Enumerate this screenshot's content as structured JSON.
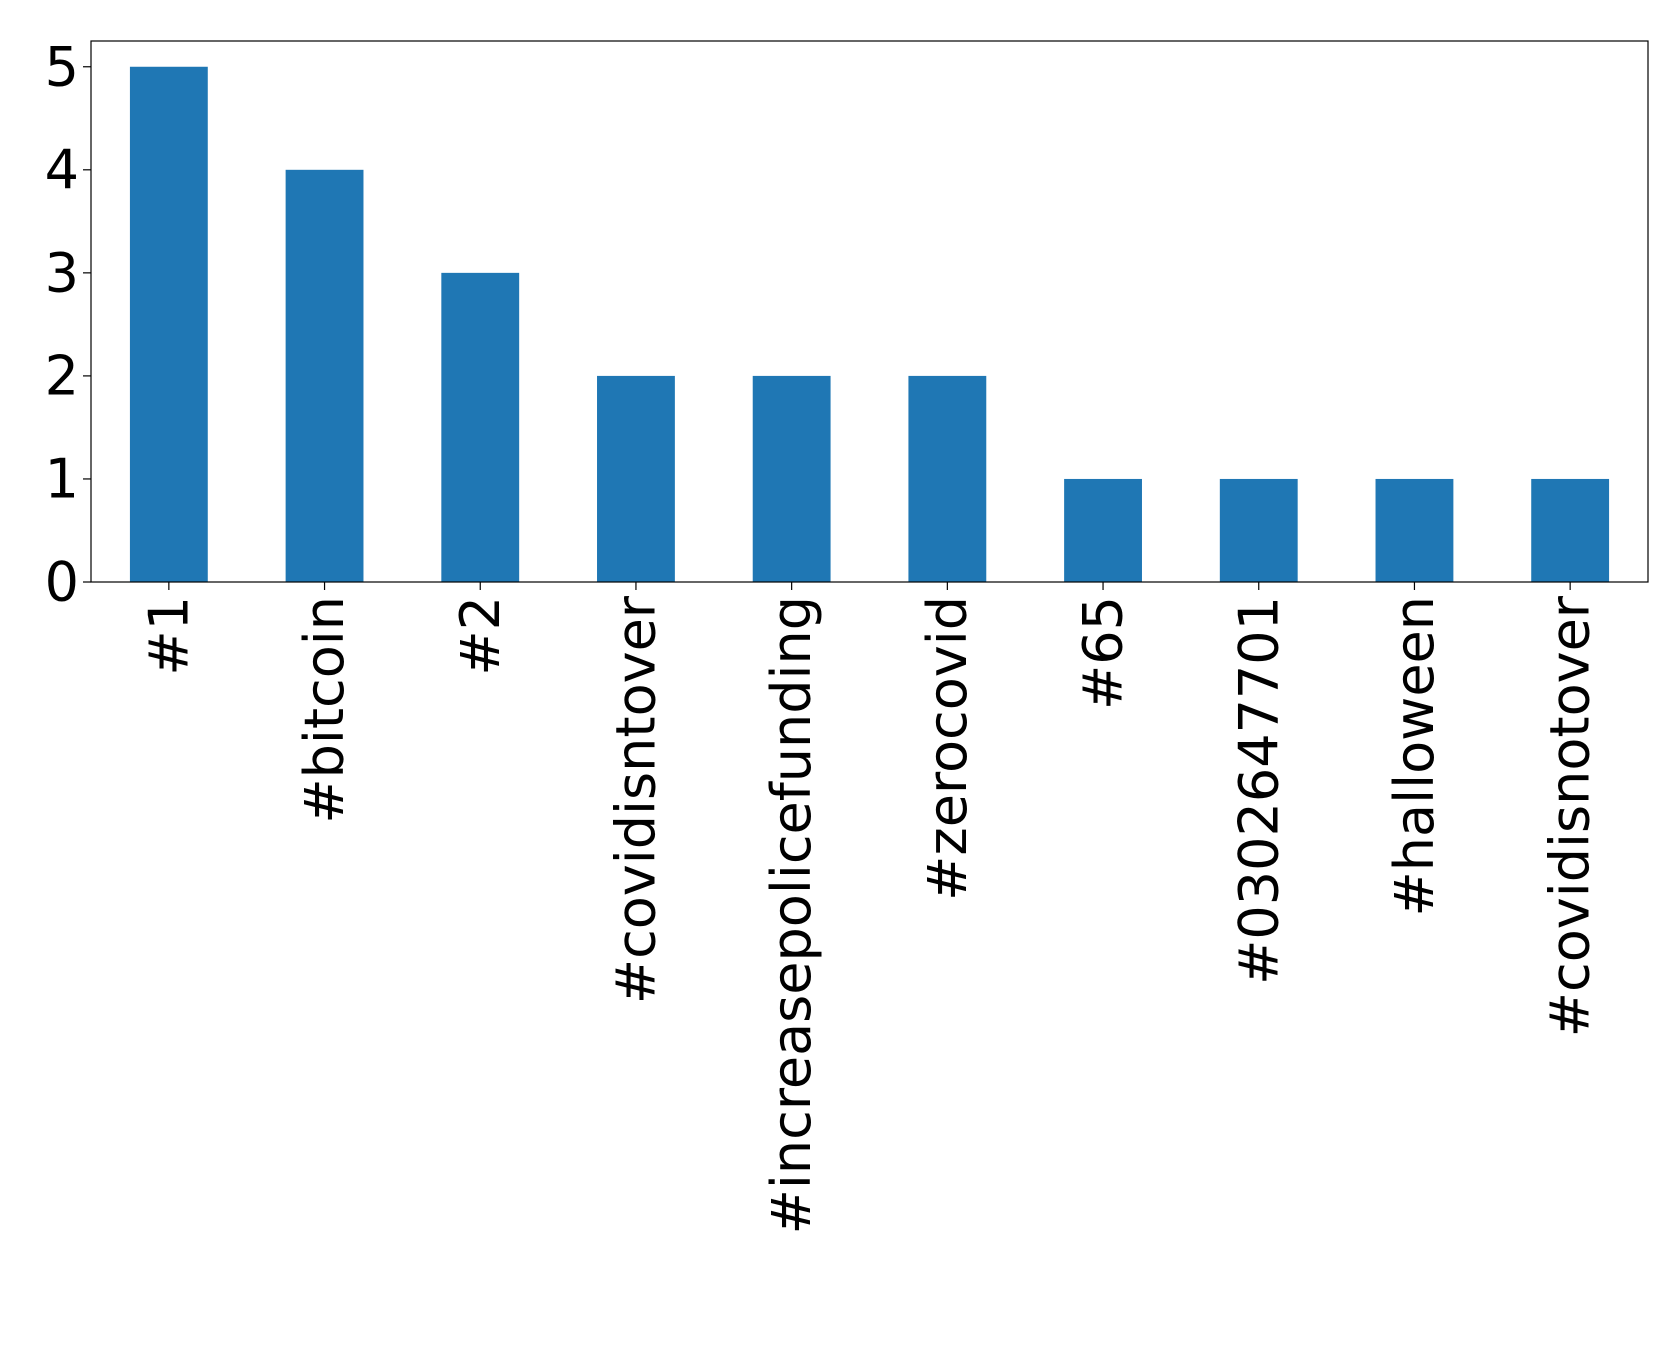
{
  "chart_data": {
    "type": "bar",
    "categories": [
      "#1",
      "#bitcoin",
      "#2",
      "#covidisntover",
      "#increasepolicefunding",
      "#zerocovid",
      "#65",
      "#0302647701",
      "#halloween",
      "#covidisnotover"
    ],
    "values": [
      5,
      4,
      3,
      2,
      2,
      2,
      1,
      1,
      1,
      1
    ],
    "color": "#1f77b4",
    "ylim": [
      0,
      5.25
    ],
    "yticks": [
      0,
      1,
      2,
      3,
      4,
      5
    ],
    "grid": false
  }
}
